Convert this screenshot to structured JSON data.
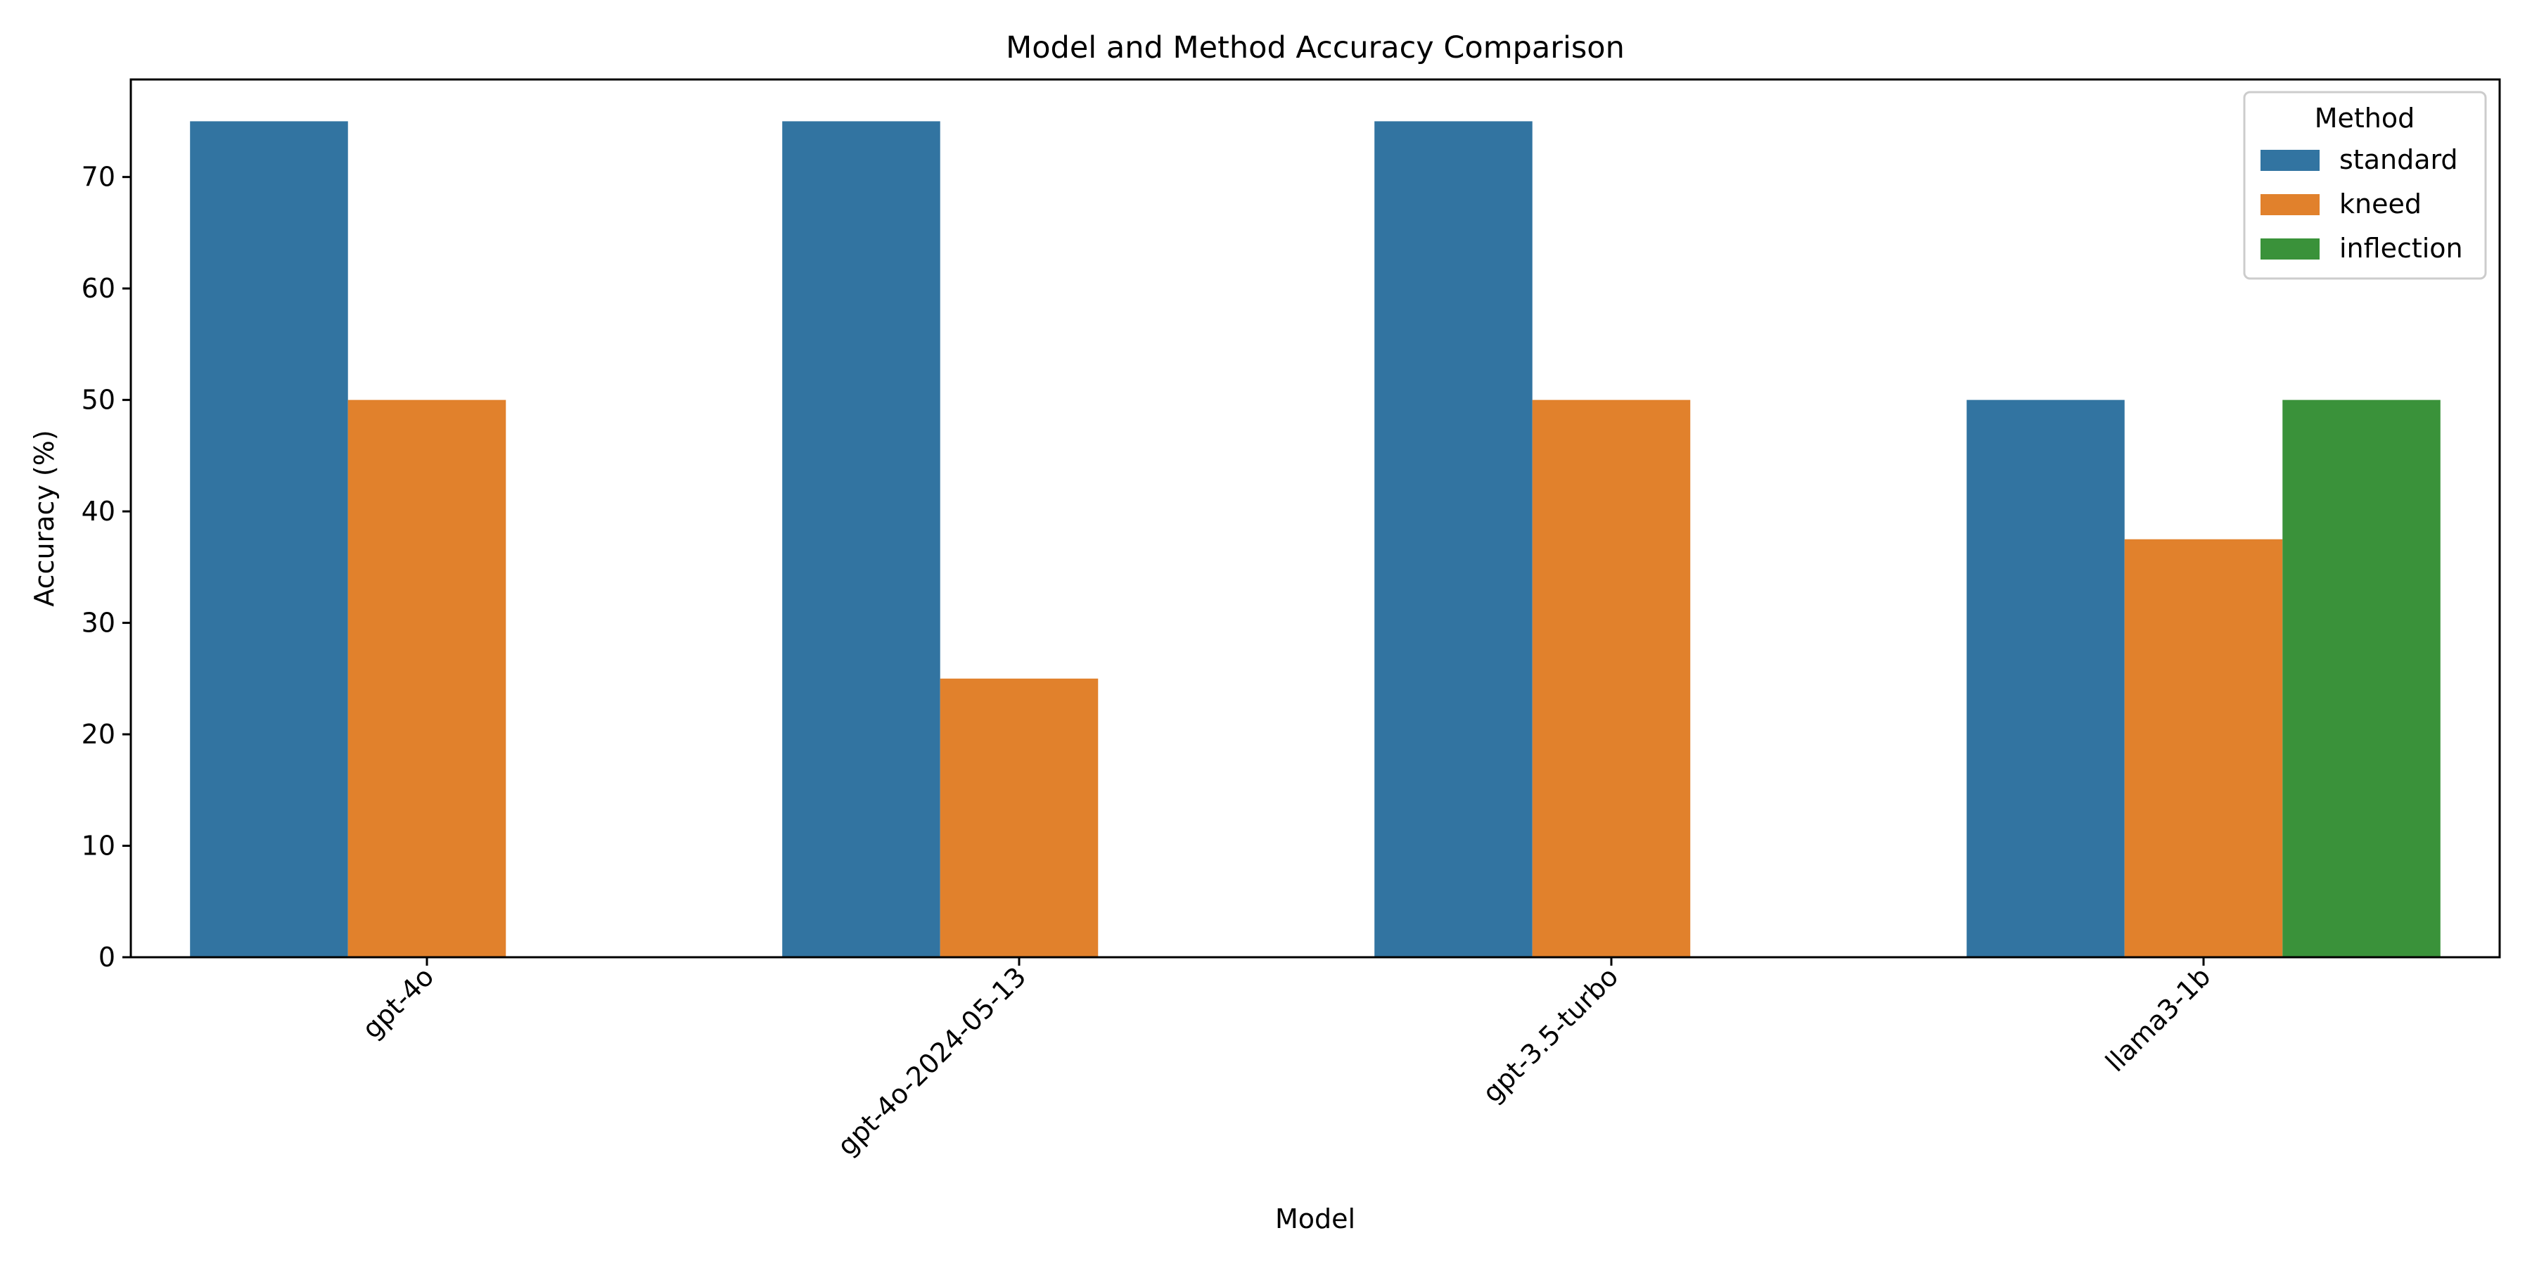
{
  "chart_data": {
    "type": "bar",
    "title": "Model and Method Accuracy Comparison",
    "xlabel": "Model",
    "ylabel": "Accuracy (%)",
    "categories": [
      "gpt-4o",
      "gpt-4o-2024-05-13",
      "gpt-3.5-turbo",
      "llama3-1b"
    ],
    "series": [
      {
        "name": "standard",
        "values": [
          75,
          75,
          75,
          50
        ],
        "color": "#3274a1"
      },
      {
        "name": "kneed",
        "values": [
          50,
          25,
          50,
          37.5
        ],
        "color": "#e1812c"
      },
      {
        "name": "inflection",
        "values": [
          null,
          null,
          null,
          50
        ],
        "color": "#3a923a"
      }
    ],
    "ylim": [
      0,
      78.75
    ],
    "yticks": [
      0,
      10,
      20,
      30,
      40,
      50,
      60,
      70
    ],
    "grid": false,
    "legend": {
      "title": "Method",
      "placement": "top-right"
    }
  }
}
